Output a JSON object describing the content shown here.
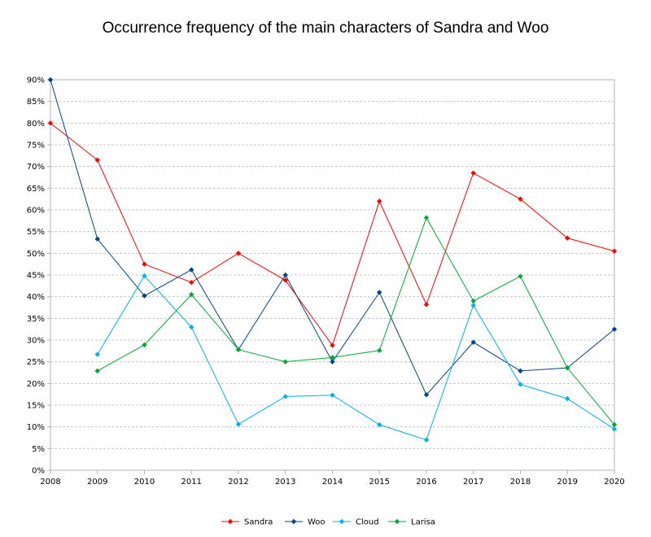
{
  "chart_data": {
    "type": "line",
    "title": "Occurrence frequency of the main characters of Sandra and Woo",
    "x": [
      "2008",
      "2009",
      "2010",
      "2011",
      "2012",
      "2013",
      "2014",
      "2015",
      "2016",
      "2017",
      "2018",
      "2019",
      "2020"
    ],
    "ylim": [
      0,
      90
    ],
    "yticks": [
      "0%",
      "5%",
      "10%",
      "15%",
      "20%",
      "25%",
      "30%",
      "35%",
      "40%",
      "45%",
      "50%",
      "55%",
      "60%",
      "65%",
      "70%",
      "75%",
      "80%",
      "85%",
      "90%"
    ],
    "grid": "horizontal dashed",
    "legend": "bottom",
    "series": [
      {
        "name": "Sandra",
        "color": "#ff0000",
        "values": [
          80,
          71.5,
          47.5,
          43.3,
          50,
          43.8,
          28.8,
          62,
          38.2,
          68.5,
          62.5,
          53.5,
          50.5
        ]
      },
      {
        "name": "Woo",
        "color": "#004586",
        "values": [
          90,
          53.3,
          40.2,
          46.2,
          27.8,
          45,
          25,
          41,
          17.4,
          29.5,
          22.9,
          23.6,
          32.5
        ]
      },
      {
        "name": "Cloud",
        "color": "#00b0f0",
        "values": [
          null,
          26.7,
          44.8,
          33,
          10.6,
          17,
          17.3,
          10.5,
          7,
          38,
          19.8,
          16.5,
          9.5
        ]
      },
      {
        "name": "Larisa",
        "color": "#00a933",
        "values": [
          null,
          22.9,
          28.9,
          40.5,
          27.8,
          25,
          26,
          27.6,
          58.2,
          39,
          44.7,
          23.6,
          10.5
        ]
      }
    ]
  }
}
